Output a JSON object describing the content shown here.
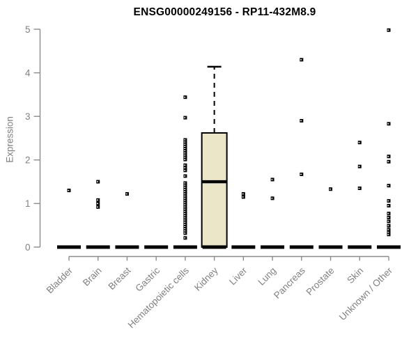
{
  "chart_data": {
    "type": "boxplot",
    "title": "ENSG00000249156 - RP11-432M8.9",
    "ylabel": "Expression",
    "xlabel": "",
    "ylim": [
      0,
      5
    ],
    "yticks": [
      0,
      1,
      2,
      3,
      4,
      5
    ],
    "grid": false,
    "legend": null,
    "categories": [
      "Bladder",
      "Brain",
      "Breast",
      "Gastric",
      "Hematopoietic cells",
      "Kidney",
      "Liver",
      "Lung",
      "Pancreas",
      "Prostate",
      "Skin",
      "Unknown / Other"
    ],
    "groups": [
      {
        "category": "Bladder",
        "box": {
          "q1": 0,
          "median": 0,
          "q3": 0,
          "whisker_low": 0,
          "whisker_high": 0
        },
        "outliers": [
          1.3
        ]
      },
      {
        "category": "Brain",
        "box": {
          "q1": 0,
          "median": 0,
          "q3": 0,
          "whisker_low": 0,
          "whisker_high": 0
        },
        "outliers": [
          1.5,
          1.08,
          1.0,
          0.92
        ]
      },
      {
        "category": "Breast",
        "box": {
          "q1": 0,
          "median": 0,
          "q3": 0,
          "whisker_low": 0,
          "whisker_high": 0
        },
        "outliers": [
          1.22
        ]
      },
      {
        "category": "Gastric",
        "box": {
          "q1": 0,
          "median": 0,
          "q3": 0,
          "whisker_low": 0,
          "whisker_high": 0
        },
        "outliers": []
      },
      {
        "category": "Hematopoietic cells",
        "box": {
          "q1": 0,
          "median": 0,
          "q3": 0,
          "whisker_low": 0,
          "whisker_high": 0
        },
        "outliers": [
          3.44,
          2.97,
          2.46,
          2.41,
          2.36,
          2.31,
          2.26,
          2.21,
          2.16,
          2.11,
          2.06,
          2.01,
          1.88,
          1.82,
          1.76,
          1.63,
          1.47,
          1.42,
          1.37,
          1.32,
          1.27,
          1.22,
          1.17,
          1.12,
          1.07,
          1.02,
          0.97,
          0.92,
          0.87,
          0.82,
          0.77,
          0.72,
          0.67,
          0.62,
          0.57,
          0.52,
          0.47,
          0.42,
          0.37,
          0.32,
          0.21
        ]
      },
      {
        "category": "Kidney",
        "box": {
          "q1": 0,
          "median": 1.5,
          "q3": 2.62,
          "whisker_low": 0,
          "whisker_high": 4.14
        },
        "outliers": []
      },
      {
        "category": "Liver",
        "box": {
          "q1": 0,
          "median": 0,
          "q3": 0,
          "whisker_low": 0,
          "whisker_high": 0
        },
        "outliers": [
          1.22,
          1.15
        ]
      },
      {
        "category": "Lung",
        "box": {
          "q1": 0,
          "median": 0,
          "q3": 0,
          "whisker_low": 0,
          "whisker_high": 0
        },
        "outliers": [
          1.55,
          1.12
        ]
      },
      {
        "category": "Pancreas",
        "box": {
          "q1": 0,
          "median": 0,
          "q3": 0,
          "whisker_low": 0,
          "whisker_high": 0
        },
        "outliers": [
          4.3,
          2.9,
          1.67
        ]
      },
      {
        "category": "Prostate",
        "box": {
          "q1": 0,
          "median": 0,
          "q3": 0,
          "whisker_low": 0,
          "whisker_high": 0
        },
        "outliers": [
          1.33
        ]
      },
      {
        "category": "Skin",
        "box": {
          "q1": 0,
          "median": 0,
          "q3": 0,
          "whisker_low": 0,
          "whisker_high": 0
        },
        "outliers": [
          2.4,
          1.85,
          1.35
        ]
      },
      {
        "category": "Unknown / Other",
        "box": {
          "q1": 0,
          "median": 0,
          "q3": 0,
          "whisker_low": 0,
          "whisker_high": 0
        },
        "outliers": [
          4.98,
          2.83,
          2.08,
          1.96,
          1.41,
          1.06,
          0.95,
          0.77,
          0.68,
          0.59,
          0.49,
          0.4,
          0.34,
          0.29
        ]
      }
    ],
    "style": {
      "box_fill": "#ece6c9",
      "line_color": "#000000",
      "axis_color": "#8a8a8a",
      "label_color": "#808080",
      "title_color": "#000000",
      "background": "#ffffff"
    }
  }
}
